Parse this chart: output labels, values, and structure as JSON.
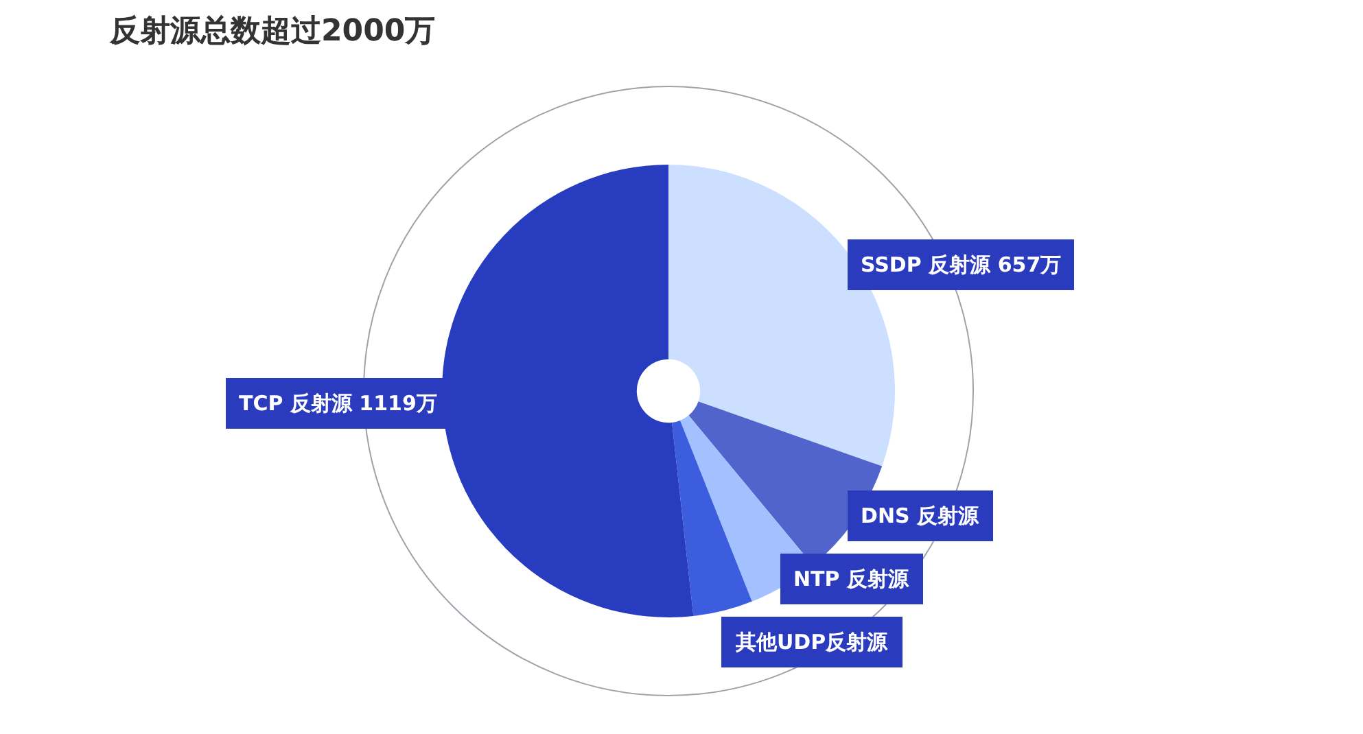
{
  "chart_data": {
    "type": "pie",
    "title": "反射源总数超过2000万",
    "categories": [
      "SSDP 反射源",
      "DNS 反射源",
      "NTP 反射源",
      "其他UDP反射源",
      "TCP 反射源"
    ],
    "values": [
      657,
      186,
      108,
      92,
      1119
    ],
    "colors": [
      "#cddfff",
      "#5064cc",
      "#a3c0ff",
      "#3d5ddf",
      "#283cbf"
    ],
    "value_labels": [
      "657万",
      null,
      null,
      null,
      "1119万"
    ]
  }
}
